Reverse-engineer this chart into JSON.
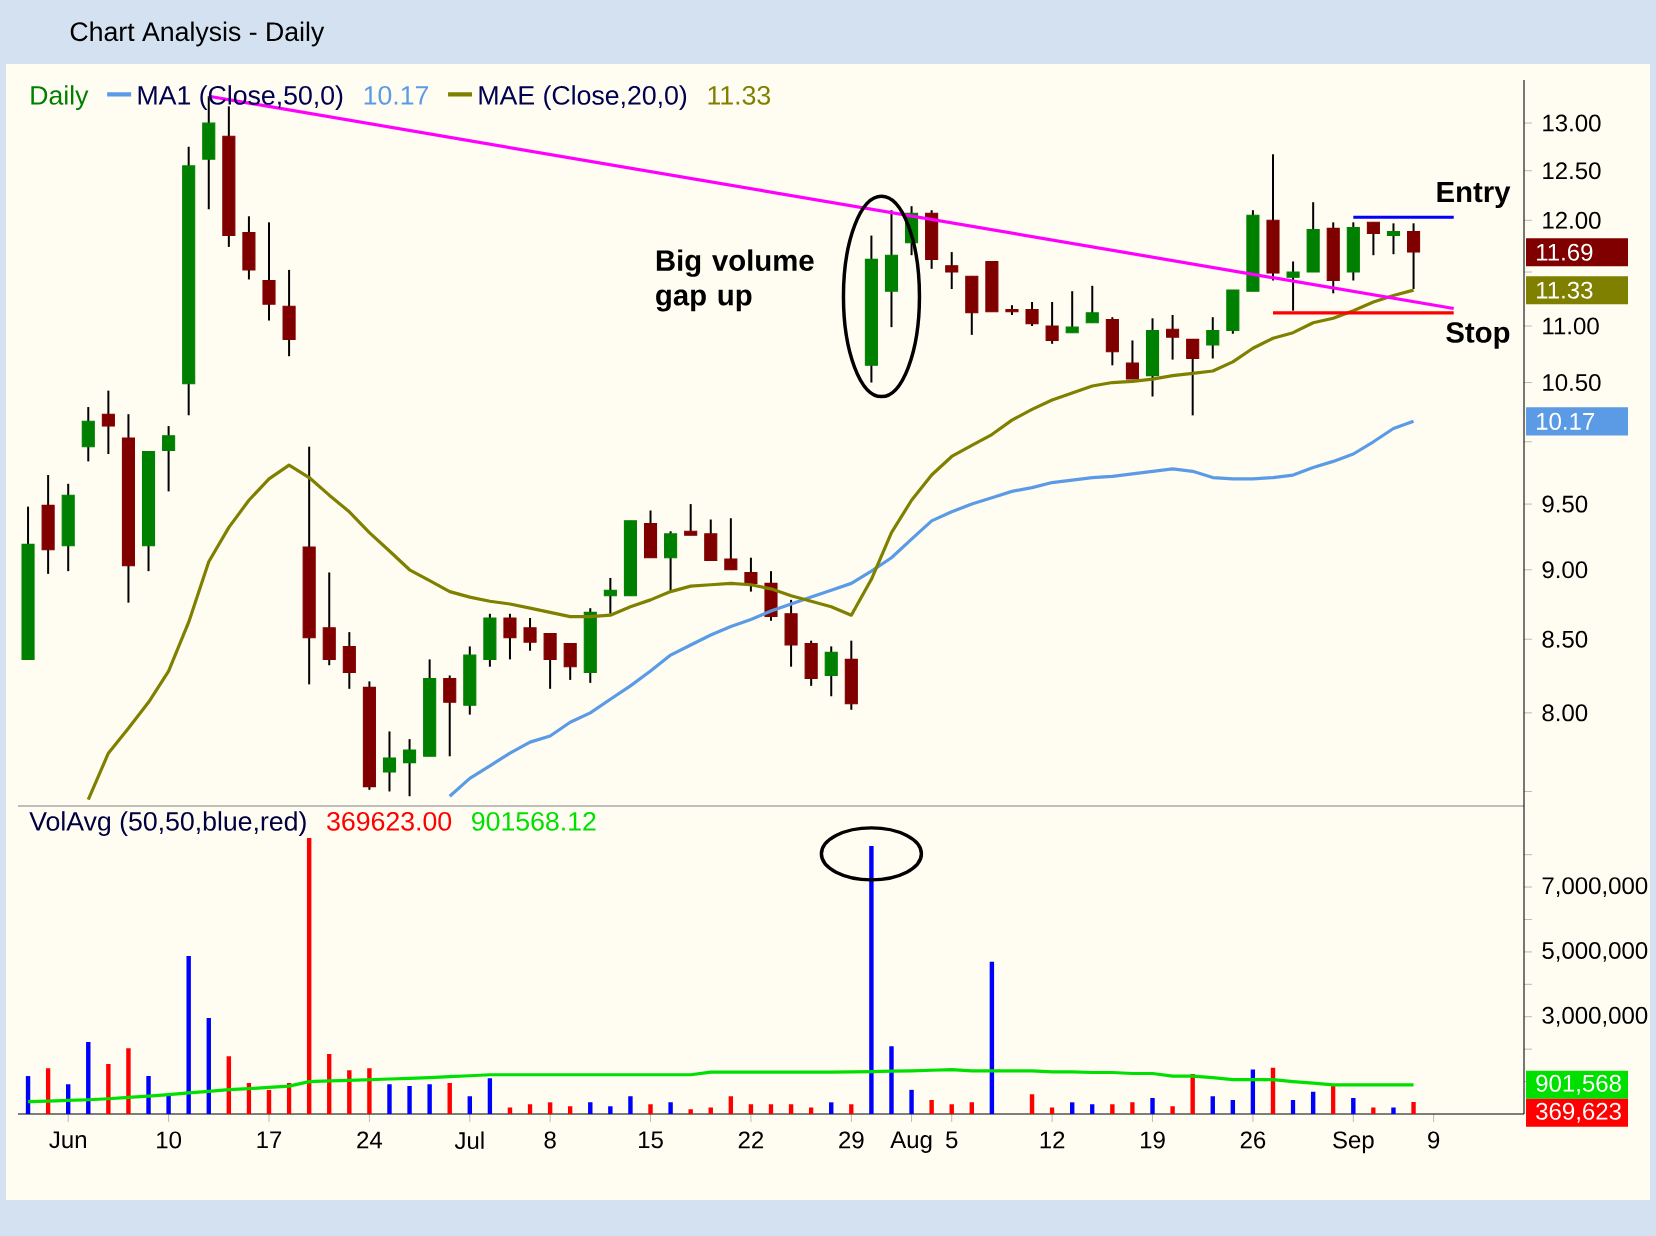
{
  "chart_data": [
    {
      "type": "candlestick",
      "title": "Chart Analysis - Daily",
      "subtitle": "Daily",
      "log": true,
      "tick_labels": "y",
      "legend": "top left",
      "categories": [
        null,
        null,
        null,
        null,
        null,
        null,
        null,
        null,
        null,
        null,
        null,
        null,
        null,
        null,
        null,
        null,
        null,
        null,
        null,
        null,
        null,
        null,
        null,
        null,
        null,
        null,
        null,
        null,
        null,
        null,
        null,
        null,
        null,
        null,
        null,
        null,
        null,
        null,
        null,
        null,
        null,
        null,
        null,
        null,
        null,
        null,
        null,
        null,
        null,
        null,
        null,
        null,
        null,
        null,
        null,
        null,
        null,
        null,
        null,
        null,
        null,
        null,
        null,
        null,
        null,
        null,
        null,
        null,
        null,
        null,
        null,
        null,
        null,
        null,
        null
      ],
      "ohlc": [
        [
          8.36,
          9.48,
          8.36,
          9.19
        ],
        [
          9.49,
          9.73,
          8.97,
          9.15
        ],
        [
          9.18,
          9.66,
          8.99,
          9.57
        ],
        [
          9.96,
          10.29,
          9.84,
          10.17
        ],
        [
          10.23,
          10.43,
          9.9,
          10.13
        ],
        [
          10.03,
          10.23,
          8.76,
          9.03
        ],
        [
          9.18,
          9.92,
          8.99,
          9.92
        ],
        [
          9.93,
          10.13,
          9.6,
          10.05
        ],
        [
          10.49,
          12.75,
          10.22,
          12.55
        ],
        [
          12.62,
          13.29,
          12.11,
          13.0
        ],
        [
          12.86,
          13.18,
          11.74,
          11.85
        ],
        [
          11.88,
          12.04,
          11.43,
          11.52
        ],
        [
          11.42,
          11.98,
          11.05,
          11.2
        ],
        [
          11.18,
          11.52,
          10.73,
          10.88
        ],
        [
          9.17,
          9.96,
          8.19,
          8.51
        ],
        [
          8.58,
          8.98,
          8.32,
          8.36
        ],
        [
          8.45,
          8.55,
          8.16,
          8.27
        ],
        [
          8.17,
          8.21,
          7.51,
          7.53
        ],
        [
          7.62,
          7.88,
          7.5,
          7.71
        ],
        [
          7.68,
          7.83,
          7.47,
          7.76
        ],
        [
          7.72,
          8.36,
          7.72,
          8.23
        ],
        [
          8.23,
          8.25,
          7.72,
          8.07
        ],
        [
          8.05,
          8.45,
          7.99,
          8.39
        ],
        [
          8.36,
          8.68,
          8.31,
          8.65
        ],
        [
          8.65,
          8.68,
          8.36,
          8.51
        ],
        [
          8.58,
          8.65,
          8.42,
          8.48
        ],
        [
          8.54,
          8.54,
          8.16,
          8.36
        ],
        [
          8.47,
          8.47,
          8.22,
          8.31
        ],
        [
          8.27,
          8.72,
          8.2,
          8.69
        ],
        [
          8.81,
          8.94,
          8.68,
          8.85
        ],
        [
          8.81,
          9.37,
          8.81,
          9.37
        ],
        [
          9.35,
          9.45,
          9.09,
          9.09
        ],
        [
          9.09,
          9.29,
          8.85,
          9.27
        ],
        [
          9.29,
          9.5,
          9.26,
          9.26
        ],
        [
          9.27,
          9.38,
          9.07,
          9.07
        ],
        [
          9.08,
          9.39,
          9.0,
          9.0
        ],
        [
          8.98,
          9.09,
          8.84,
          8.9
        ],
        [
          8.9,
          8.99,
          8.63,
          8.66
        ],
        [
          8.68,
          8.78,
          8.31,
          8.46
        ],
        [
          8.47,
          8.49,
          8.18,
          8.23
        ],
        [
          8.25,
          8.45,
          8.11,
          8.41
        ],
        [
          8.36,
          8.49,
          8.02,
          8.06
        ],
        [
          10.65,
          11.85,
          10.5,
          11.62
        ],
        [
          11.32,
          12.1,
          10.99,
          11.66
        ],
        [
          11.78,
          12.14,
          11.66,
          12.07
        ],
        [
          12.07,
          12.1,
          11.53,
          11.62
        ],
        [
          11.56,
          11.69,
          11.34,
          11.5
        ],
        [
          11.46,
          11.46,
          10.92,
          11.12
        ],
        [
          11.6,
          11.6,
          11.13,
          11.13
        ],
        [
          11.15,
          11.19,
          11.1,
          11.13
        ],
        [
          11.15,
          11.22,
          11.0,
          11.02
        ],
        [
          11.0,
          11.22,
          10.84,
          10.87
        ],
        [
          10.94,
          11.32,
          10.94,
          10.99
        ],
        [
          11.03,
          11.37,
          11.03,
          11.12
        ],
        [
          11.06,
          11.08,
          10.65,
          10.77
        ],
        [
          10.67,
          10.87,
          10.53,
          10.53
        ],
        [
          10.56,
          11.07,
          10.38,
          10.96
        ],
        [
          10.97,
          11.1,
          10.7,
          10.9
        ],
        [
          10.88,
          10.88,
          10.22,
          10.71
        ],
        [
          10.83,
          11.08,
          10.71,
          10.96
        ],
        [
          10.96,
          11.33,
          10.93,
          11.33
        ],
        [
          11.32,
          12.1,
          11.32,
          12.05
        ],
        [
          12.0,
          12.67,
          11.42,
          11.49
        ],
        [
          11.45,
          11.6,
          11.14,
          11.5
        ],
        [
          11.5,
          12.18,
          11.5,
          11.91
        ],
        [
          11.92,
          11.98,
          11.3,
          11.42
        ],
        [
          11.5,
          11.98,
          11.42,
          11.93
        ],
        [
          11.98,
          11.98,
          11.66,
          11.87
        ],
        [
          11.85,
          11.97,
          11.67,
          11.89
        ],
        [
          11.89,
          11.97,
          11.34,
          11.69
        ],
        null,
        null,
        null,
        null,
        null
      ],
      "colors": [
        "#008000",
        "#800000",
        "#008000",
        "#008000",
        "#800000",
        "#800000",
        "#008000",
        "#008000",
        "#008000",
        "#008000",
        "#800000",
        "#800000",
        "#800000",
        "#800000",
        "#800000",
        "#800000",
        "#800000",
        "#800000",
        "#008000",
        "#008000",
        "#008000",
        "#800000",
        "#008000",
        "#008000",
        "#800000",
        "#800000",
        "#800000",
        "#800000",
        "#008000",
        "#008000",
        "#008000",
        "#800000",
        "#008000",
        "#800000",
        "#800000",
        "#800000",
        "#800000",
        "#800000",
        "#800000",
        "#800000",
        "#008000",
        "#800000",
        "#008000",
        "#008000",
        "#008000",
        "#800000",
        "#800000",
        "#800000",
        "#800000",
        "#800000",
        "#800000",
        "#800000",
        "#008000",
        "#008000",
        "#800000",
        "#800000",
        "#008000",
        "#800000",
        "#800000",
        "#008000",
        "#008000",
        "#008000",
        "#800000",
        "#008000",
        "#008000",
        "#800000",
        "#008000",
        "#800000",
        "#008000",
        "#800000",
        null,
        null,
        null,
        null,
        null
      ],
      "series": [
        {
          "type": "line",
          "name": "MA1 (Close,50,0)",
          "color": "#5b9be6",
          "values": [
            null,
            null,
            null,
            null,
            null,
            null,
            null,
            null,
            null,
            null,
            null,
            null,
            null,
            null,
            null,
            null,
            null,
            null,
            null,
            null,
            null,
            7.47,
            7.58,
            7.66,
            7.74,
            7.81,
            7.85,
            7.94,
            8.0,
            8.09,
            8.18,
            8.28,
            8.39,
            8.46,
            8.53,
            8.59,
            8.64,
            8.7,
            8.75,
            8.8,
            8.85,
            8.9,
            8.99,
            9.09,
            9.23,
            9.37,
            9.44,
            9.5,
            9.55,
            9.6,
            9.63,
            9.67,
            9.69,
            9.71,
            9.72,
            9.74,
            9.76,
            9.78,
            9.76,
            9.71,
            9.7,
            9.7,
            9.71,
            9.73,
            9.79,
            9.84,
            9.9,
            10.0,
            10.11,
            10.17,
            null,
            null,
            null,
            null,
            null
          ]
        },
        {
          "type": "line",
          "name": "MAE (Close,20,0)",
          "color": "#808000",
          "values": [
            null,
            null,
            null,
            7.45,
            7.74,
            7.9,
            8.07,
            8.28,
            8.62,
            9.06,
            9.32,
            9.53,
            9.7,
            9.81,
            9.71,
            9.57,
            9.44,
            9.28,
            9.14,
            9.0,
            8.92,
            8.84,
            8.8,
            8.77,
            8.75,
            8.72,
            8.69,
            8.66,
            8.66,
            8.67,
            8.73,
            8.78,
            8.84,
            8.88,
            8.89,
            8.9,
            8.89,
            8.86,
            8.81,
            8.77,
            8.73,
            8.67,
            8.93,
            9.28,
            9.53,
            9.73,
            9.88,
            9.97,
            10.06,
            10.18,
            10.27,
            10.35,
            10.41,
            10.47,
            10.5,
            10.51,
            10.53,
            10.56,
            10.58,
            10.6,
            10.68,
            10.8,
            10.89,
            10.94,
            11.03,
            11.07,
            11.14,
            11.22,
            11.28,
            11.33,
            null,
            null,
            null,
            null,
            null
          ]
        },
        {
          "type": "line",
          "color": "#ff00ff",
          "values": [
            null,
            null,
            null,
            null,
            null,
            null,
            null,
            null,
            null,
            13.29,
            null,
            null,
            null,
            null,
            null,
            null,
            null,
            null,
            null,
            null,
            null,
            null,
            null,
            null,
            null,
            null,
            null,
            null,
            null,
            null,
            null,
            null,
            null,
            null,
            null,
            null,
            null,
            null,
            null,
            null,
            null,
            null,
            null,
            null,
            null,
            null,
            null,
            null,
            null,
            null,
            null,
            null,
            null,
            null,
            null,
            null,
            null,
            null,
            null,
            null,
            null,
            null,
            null,
            null,
            null,
            null,
            null,
            null,
            null,
            null,
            null,
            11.16,
            null,
            null,
            null
          ]
        },
        {
          "type": "line",
          "name": "Entry",
          "color": "#0000ff",
          "values": [
            null,
            null,
            null,
            null,
            null,
            null,
            null,
            null,
            null,
            null,
            null,
            null,
            null,
            null,
            null,
            null,
            null,
            null,
            null,
            null,
            null,
            null,
            null,
            null,
            null,
            null,
            null,
            null,
            null,
            null,
            null,
            null,
            null,
            null,
            null,
            null,
            null,
            null,
            null,
            null,
            null,
            null,
            null,
            null,
            null,
            null,
            null,
            null,
            null,
            null,
            null,
            null,
            null,
            null,
            null,
            null,
            null,
            null,
            null,
            null,
            null,
            null,
            null,
            null,
            null,
            null,
            12.03,
            12.03,
            12.03,
            12.03,
            12.03,
            12.03,
            null,
            null,
            null
          ]
        },
        {
          "type": "line",
          "name": "Stop",
          "color": "#ff0000",
          "values": [
            null,
            null,
            null,
            null,
            null,
            null,
            null,
            null,
            null,
            null,
            null,
            null,
            null,
            null,
            null,
            null,
            null,
            null,
            null,
            null,
            null,
            null,
            null,
            null,
            null,
            null,
            null,
            null,
            null,
            null,
            null,
            null,
            null,
            null,
            null,
            null,
            null,
            null,
            null,
            null,
            null,
            null,
            null,
            null,
            null,
            null,
            null,
            null,
            null,
            null,
            null,
            null,
            null,
            null,
            null,
            null,
            null,
            null,
            null,
            null,
            null,
            null,
            11.12,
            11.12,
            11.12,
            11.12,
            11.12,
            11.12,
            11.12,
            11.12,
            11.12,
            11.12,
            null,
            null,
            null
          ]
        }
      ],
      "ylim": [
        7.41,
        13.47
      ],
      "yticks": [
        {
          "value": 7.5,
          "label": null
        },
        {
          "value": 8,
          "label": "8.00"
        },
        {
          "value": 8.5,
          "label": "8.50"
        },
        {
          "value": 9,
          "label": "9.00"
        },
        {
          "value": 9.5,
          "label": "9.50"
        },
        {
          "value": 10,
          "label": null
        },
        {
          "value": 10.5,
          "label": "10.50"
        },
        {
          "value": 11,
          "label": "11.00"
        },
        {
          "value": 11.5,
          "label": null
        },
        {
          "value": 12,
          "label": "12.00"
        },
        {
          "value": 12.5,
          "label": "12.50"
        },
        {
          "value": 13,
          "label": "13.00"
        }
      ],
      "annotations": [
        "Big volume gap up",
        "10.17",
        "11.33",
        "11.69",
        "10.17",
        "11.33"
      ]
    },
    {
      "type": "bar",
      "title": "VolAvg (50,50,blue,red)",
      "categories": [
        null,
        null,
        "Jun",
        null,
        null,
        null,
        null,
        "10",
        null,
        null,
        null,
        null,
        "17",
        null,
        null,
        null,
        null,
        "24",
        null,
        null,
        null,
        null,
        "Jul",
        null,
        null,
        null,
        "8",
        null,
        null,
        null,
        null,
        "15",
        null,
        null,
        null,
        null,
        "22",
        null,
        null,
        null,
        null,
        "29",
        null,
        null,
        "Aug",
        null,
        "5",
        null,
        null,
        null,
        null,
        "12",
        null,
        null,
        null,
        null,
        "19",
        null,
        null,
        null,
        null,
        "26",
        null,
        null,
        null,
        null,
        "Sep",
        null,
        null,
        null,
        "9",
        null,
        null,
        null,
        null
      ],
      "series": [
        {
          "type": "bar",
          "values": [
            1170000,
            1410000,
            920000,
            2220000,
            1540000,
            2030000,
            1170000,
            610000,
            4870000,
            2960000,
            1780000,
            960000,
            750000,
            960000,
            8510000,
            1850000,
            1350000,
            1410000,
            920000,
            860000,
            920000,
            960000,
            550000,
            1100000,
            200000,
            300000,
            360000,
            240000,
            360000,
            240000,
            550000,
            300000,
            360000,
            150000,
            200000,
            550000,
            300000,
            300000,
            300000,
            200000,
            360000,
            300000,
            8270000,
            2090000,
            750000,
            430000,
            300000,
            360000,
            4700000,
            null,
            610000,
            200000,
            360000,
            300000,
            300000,
            360000,
            490000,
            240000,
            1230000,
            550000,
            430000,
            1370000,
            1430000,
            430000,
            690000,
            860000,
            490000,
            200000,
            200000,
            369623,
            null,
            null,
            null,
            null,
            null
          ],
          "colors": [
            "#0000ff",
            "#ff0000",
            "#0000ff",
            "#0000ff",
            "#ff0000",
            "#ff0000",
            "#0000ff",
            "#0000ff",
            "#0000ff",
            "#0000ff",
            "#ff0000",
            "#ff0000",
            "#ff0000",
            "#ff0000",
            "#ff0000",
            "#ff0000",
            "#ff0000",
            "#ff0000",
            "#0000ff",
            "#0000ff",
            "#0000ff",
            "#ff0000",
            "#0000ff",
            "#0000ff",
            "#ff0000",
            "#ff0000",
            "#ff0000",
            "#ff0000",
            "#0000ff",
            "#0000ff",
            "#0000ff",
            "#ff0000",
            "#0000ff",
            "#ff0000",
            "#ff0000",
            "#ff0000",
            "#ff0000",
            "#ff0000",
            "#ff0000",
            "#ff0000",
            "#0000ff",
            "#ff0000",
            "#0000ff",
            "#0000ff",
            "#0000ff",
            "#ff0000",
            "#ff0000",
            "#ff0000",
            "#0000ff",
            null,
            "#ff0000",
            "#ff0000",
            "#0000ff",
            "#0000ff",
            "#ff0000",
            "#ff0000",
            "#0000ff",
            "#ff0000",
            "#ff0000",
            "#0000ff",
            "#0000ff",
            "#0000ff",
            "#ff0000",
            "#0000ff",
            "#0000ff",
            "#ff0000",
            "#0000ff",
            "#ff0000",
            "#0000ff",
            "#ff0000",
            null,
            null,
            null,
            null,
            null
          ]
        },
        {
          "type": "line",
          "color": "#00e000",
          "values": [
            380000,
            400000,
            420000,
            440000,
            470000,
            510000,
            550000,
            600000,
            650000,
            700000,
            750000,
            780000,
            820000,
            860000,
            1000000,
            1020000,
            1040000,
            1060000,
            1080000,
            1100000,
            1120000,
            1150000,
            1180000,
            1210000,
            1210000,
            1210000,
            1210000,
            1210000,
            1210000,
            1210000,
            1210000,
            1210000,
            1210000,
            1210000,
            1290000,
            1290000,
            1290000,
            1290000,
            1290000,
            1290000,
            1290000,
            1300000,
            1310000,
            1320000,
            1330000,
            1350000,
            1370000,
            1330000,
            1330000,
            1330000,
            1330000,
            1300000,
            1300000,
            1280000,
            1280000,
            1250000,
            1250000,
            1170000,
            1170000,
            1120000,
            1060000,
            1060000,
            1060000,
            1000000,
            950000,
            900000,
            900000,
            900000,
            900000,
            901568.12,
            null,
            null,
            null,
            null,
            null
          ]
        }
      ],
      "ylim": [
        0,
        9500000
      ],
      "yticks": [
        {
          "value": 1000000,
          "label": null
        },
        {
          "value": 2000000,
          "label": null
        },
        {
          "value": 3000000,
          "label": "3,000,000"
        },
        {
          "value": 4000000,
          "label": null
        },
        {
          "value": 5000000,
          "label": "5,000,000"
        },
        {
          "value": 6000000,
          "label": null
        },
        {
          "value": 7000000,
          "label": "7,000,000"
        },
        {
          "value": 8000000,
          "label": null
        }
      ],
      "annotations": [
        "369623.00",
        "901568.12",
        "369,623",
        "901,568"
      ]
    }
  ]
}
